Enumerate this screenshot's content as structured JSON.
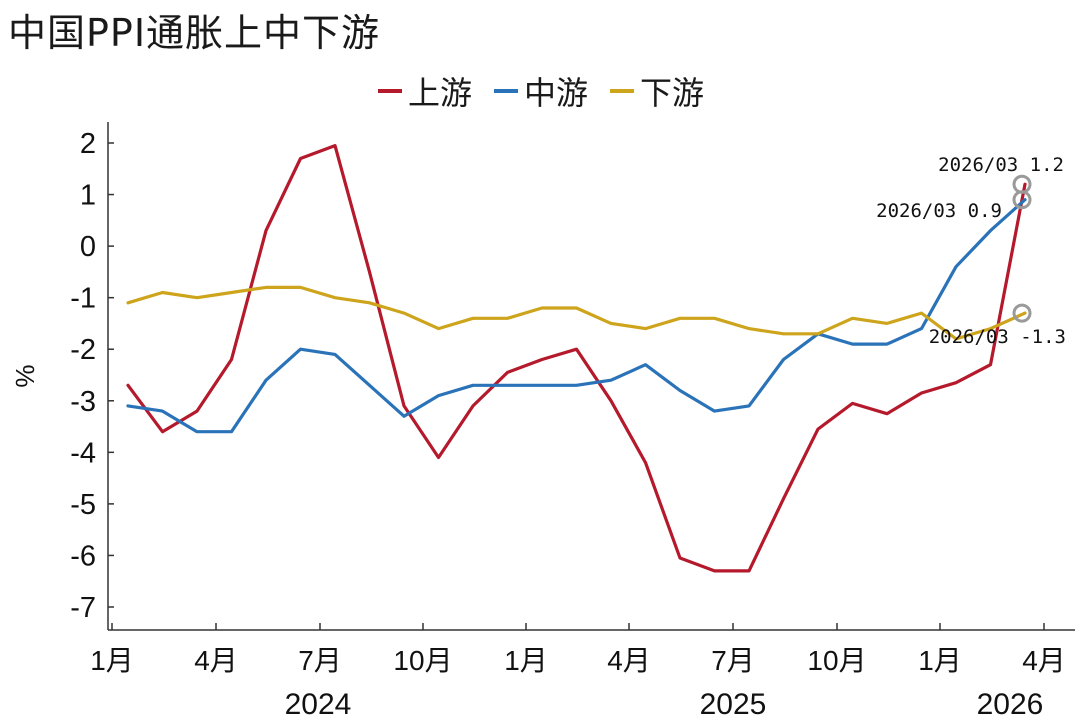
{
  "title": "中国PPI通胀上中下游",
  "colors": {
    "upstream": "#b5192c",
    "midstream": "#2a73b8",
    "downstream": "#cda41c",
    "marker": "#9a9a9a"
  },
  "chart_data": {
    "type": "line",
    "title": "中国PPI通胀上中下游",
    "ylabel": "%",
    "xlabel": "",
    "ylim": [
      -7.5,
      2.3
    ],
    "yticks": [
      2,
      1,
      0,
      -1,
      -2,
      -3,
      -4,
      -5,
      -6,
      -7
    ],
    "ytick_labels": [
      "2",
      "1",
      "0",
      "-1",
      "-2",
      "-3",
      "-4",
      "-5",
      "-6",
      "-7"
    ],
    "x": [
      "2024-01",
      "2024-02",
      "2024-03",
      "2024-04",
      "2024-05",
      "2024-06",
      "2024-07",
      "2024-08",
      "2024-09",
      "2024-10",
      "2024-11",
      "2024-12",
      "2025-01",
      "2025-02",
      "2025-03",
      "2025-04",
      "2025-05",
      "2025-06",
      "2025-07",
      "2025-08",
      "2025-09",
      "2025-10",
      "2025-11",
      "2025-12",
      "2026-01",
      "2026-02",
      "2026-03"
    ],
    "xtick_labels": [
      "1月",
      "4月",
      "7月",
      "10月",
      "1月",
      "4月",
      "7月",
      "10月",
      "1月",
      "4月"
    ],
    "year_labels": [
      "2024",
      "2025",
      "2026"
    ],
    "legend_position": "top-center",
    "grid": false,
    "series": [
      {
        "name": "上游",
        "key": "upstream",
        "values": [
          -2.7,
          -3.6,
          -3.2,
          -2.2,
          0.3,
          1.7,
          1.95,
          -0.5,
          -3.1,
          -4.1,
          -3.1,
          -2.45,
          -2.2,
          -2.0,
          -3.0,
          -4.2,
          -6.05,
          -6.3,
          -6.3,
          -4.9,
          -3.55,
          -3.05,
          -3.25,
          -2.85,
          -2.65,
          -2.3,
          1.2
        ]
      },
      {
        "name": "中游",
        "key": "midstream",
        "values": [
          -3.1,
          -3.2,
          -3.6,
          -3.6,
          -2.6,
          -2.0,
          -2.1,
          -2.7,
          -3.3,
          -2.9,
          -2.7,
          -2.7,
          -2.7,
          -2.7,
          -2.6,
          -2.3,
          -2.8,
          -3.2,
          -3.1,
          -2.2,
          -1.7,
          -1.9,
          -1.9,
          -1.6,
          -0.4,
          0.3,
          0.9
        ]
      },
      {
        "name": "下游",
        "key": "downstream",
        "values": [
          -1.1,
          -0.9,
          -1.0,
          -0.9,
          -0.8,
          -0.8,
          -1.0,
          -1.1,
          -1.3,
          -1.6,
          -1.4,
          -1.4,
          -1.2,
          -1.2,
          -1.5,
          -1.6,
          -1.4,
          -1.4,
          -1.6,
          -1.7,
          -1.7,
          -1.4,
          -1.5,
          -1.3,
          -1.8,
          -1.6,
          -1.3
        ]
      }
    ],
    "annotations": [
      {
        "text": "2026/03 1.2",
        "series": "upstream",
        "x": "2026-03",
        "y": 1.2
      },
      {
        "text": "2026/03 0.9",
        "series": "midstream",
        "x": "2026-03",
        "y": 0.9
      },
      {
        "text": "2026/03 -1.3",
        "series": "downstream",
        "x": "2026-03",
        "y": -1.3
      }
    ]
  }
}
